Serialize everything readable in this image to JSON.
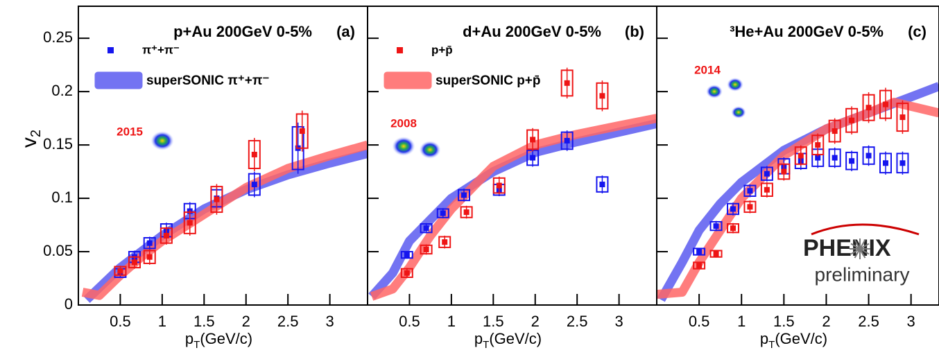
{
  "chart_data": [
    {
      "type": "scatter",
      "title": "p+Au 200GeV 0-5%",
      "tag": "(a)",
      "annotation": "2015",
      "ylabel": [
        "v",
        "2"
      ],
      "xlabel": [
        "p",
        "T",
        "(GeV/c)"
      ],
      "xlim": [
        0,
        3.45
      ],
      "ylim": [
        0,
        0.28
      ],
      "xticks": [
        0.5,
        1,
        1.5,
        2,
        2.5,
        3
      ],
      "yticks": [
        0,
        0.05,
        0.1,
        0.15,
        0.2,
        0.25
      ],
      "bands": [
        {
          "name": "superSONIC π⁺+π⁻",
          "color": "#5b5bf0",
          "x": [
            0.1,
            0.3,
            0.5,
            0.75,
            1.0,
            1.5,
            2.0,
            2.5,
            3.0,
            3.45
          ],
          "values": [
            0.005,
            0.02,
            0.035,
            0.05,
            0.065,
            0.09,
            0.108,
            0.122,
            0.133,
            0.142
          ]
        },
        {
          "color": "#ff6666",
          "x": [
            0.05,
            0.25,
            0.5,
            0.75,
            1.0,
            1.5,
            2.0,
            2.5,
            3.0,
            3.45
          ],
          "values": [
            0.012,
            0.009,
            0.028,
            0.045,
            0.06,
            0.085,
            0.11,
            0.128,
            0.14,
            0.15
          ]
        }
      ],
      "series": [
        {
          "name": "π⁺+π⁻",
          "color": "#1515ee",
          "x": [
            0.5,
            0.67,
            0.85,
            1.05,
            1.33,
            1.65,
            2.1,
            2.62
          ],
          "values": [
            0.03,
            0.045,
            0.058,
            0.07,
            0.088,
            0.1,
            0.113,
            0.147
          ],
          "errors": [
            0.004,
            0.005,
            0.005,
            0.006,
            0.007,
            0.008,
            0.01,
            0.02
          ]
        },
        {
          "color": "#ee1515",
          "x": [
            0.5,
            0.67,
            0.85,
            1.05,
            1.33,
            1.65,
            2.1,
            2.67
          ],
          "values": [
            0.032,
            0.04,
            0.045,
            0.065,
            0.077,
            0.099,
            0.141,
            0.163
          ],
          "errors": [
            0.004,
            0.005,
            0.006,
            0.007,
            0.01,
            0.012,
            0.013,
            0.016
          ]
        }
      ]
    },
    {
      "type": "scatter",
      "title": "d+Au 200GeV 0-5%",
      "tag": "(b)",
      "annotation": "2008",
      "xlabel": [
        "p",
        "T",
        "(GeV/c)"
      ],
      "xlim": [
        0,
        3.45
      ],
      "ylim": [
        0,
        0.28
      ],
      "xticks": [
        0.5,
        1,
        1.5,
        2,
        2.5,
        3
      ],
      "bands": [
        {
          "color": "#5b5bf0",
          "x": [
            0.05,
            0.3,
            0.5,
            0.75,
            1.0,
            1.5,
            2.0,
            2.5,
            3.0,
            3.45
          ],
          "values": [
            0.008,
            0.03,
            0.06,
            0.08,
            0.1,
            0.125,
            0.143,
            0.153,
            0.162,
            0.17
          ]
        },
        {
          "name": "superSONIC p+p̄",
          "color": "#ff6666",
          "x": [
            0.05,
            0.3,
            0.5,
            0.75,
            1.0,
            1.5,
            2.0,
            2.5,
            3.0,
            3.45
          ],
          "values": [
            0.008,
            0.015,
            0.035,
            0.065,
            0.09,
            0.13,
            0.15,
            0.16,
            0.168,
            0.175
          ]
        }
      ],
      "series": [
        {
          "color": "#1515ee",
          "x": [
            0.47,
            0.7,
            0.9,
            1.15,
            1.57,
            1.97,
            2.38,
            2.8
          ],
          "values": [
            0.047,
            0.072,
            0.086,
            0.103,
            0.108,
            0.138,
            0.154,
            0.113
          ],
          "errors": [
            0.003,
            0.004,
            0.004,
            0.005,
            0.005,
            0.007,
            0.008,
            0.007
          ]
        },
        {
          "name": "p+p̄",
          "color": "#ee1515",
          "x": [
            0.47,
            0.7,
            0.92,
            1.18,
            1.57,
            1.97,
            2.38,
            2.8
          ],
          "values": [
            0.03,
            0.052,
            0.059,
            0.087,
            0.112,
            0.155,
            0.208,
            0.196
          ],
          "errors": [
            0.004,
            0.004,
            0.005,
            0.005,
            0.007,
            0.009,
            0.012,
            0.012
          ]
        }
      ]
    },
    {
      "type": "scatter",
      "title": "³He+Au 200GeV 0-5%",
      "tag": "(c)",
      "annotation": "2014",
      "xlabel": [
        "p",
        "T",
        "(GeV/c)"
      ],
      "logo": [
        "PH",
        "ENIX"
      ],
      "note": "preliminary",
      "xlim": [
        0,
        3.33
      ],
      "ylim": [
        0,
        0.28
      ],
      "xticks": [
        0.5,
        1,
        1.5,
        2,
        2.5,
        3
      ],
      "bands": [
        {
          "color": "#5b5bf0",
          "x": [
            0.05,
            0.3,
            0.5,
            0.75,
            1.0,
            1.5,
            2.0,
            2.5,
            3.0,
            3.33
          ],
          "values": [
            0.005,
            0.04,
            0.07,
            0.095,
            0.115,
            0.145,
            0.165,
            0.18,
            0.195,
            0.205
          ]
        },
        {
          "color": "#ff6666",
          "x": [
            0.0,
            0.3,
            0.5,
            0.75,
            1.0,
            1.5,
            2.0,
            2.5,
            2.8,
            3.33
          ],
          "values": [
            0.01,
            0.012,
            0.04,
            0.07,
            0.1,
            0.14,
            0.165,
            0.18,
            0.19,
            0.18
          ]
        }
      ],
      "series": [
        {
          "color": "#1515ee",
          "x": [
            0.5,
            0.7,
            0.9,
            1.1,
            1.3,
            1.5,
            1.7,
            1.9,
            2.1,
            2.3,
            2.5,
            2.7,
            2.9
          ],
          "values": [
            0.05,
            0.074,
            0.09,
            0.107,
            0.123,
            0.13,
            0.135,
            0.138,
            0.138,
            0.135,
            0.14,
            0.133,
            0.133
          ],
          "errors": [
            0.003,
            0.004,
            0.005,
            0.005,
            0.006,
            0.007,
            0.007,
            0.008,
            0.008,
            0.008,
            0.008,
            0.009,
            0.009
          ]
        },
        {
          "color": "#ee1515",
          "x": [
            0.5,
            0.7,
            0.9,
            1.1,
            1.3,
            1.5,
            1.7,
            1.9,
            2.1,
            2.3,
            2.5,
            2.7,
            2.9
          ],
          "values": [
            0.037,
            0.048,
            0.072,
            0.092,
            0.108,
            0.125,
            0.14,
            0.15,
            0.163,
            0.173,
            0.185,
            0.188,
            0.176
          ],
          "errors": [
            0.003,
            0.003,
            0.004,
            0.005,
            0.006,
            0.007,
            0.008,
            0.009,
            0.01,
            0.011,
            0.012,
            0.013,
            0.013
          ]
        }
      ]
    }
  ]
}
